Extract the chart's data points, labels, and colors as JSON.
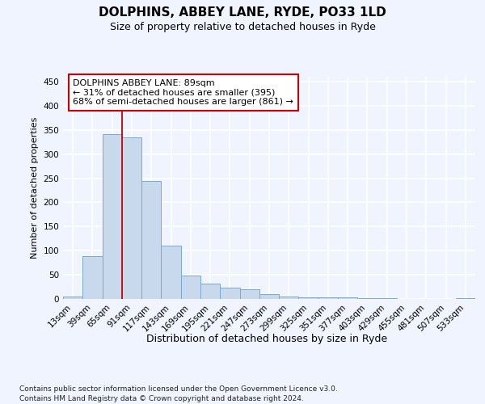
{
  "title": "DOLPHINS, ABBEY LANE, RYDE, PO33 1LD",
  "subtitle": "Size of property relative to detached houses in Ryde",
  "xlabel": "Distribution of detached houses by size in Ryde",
  "ylabel": "Number of detached properties",
  "bar_color": "#c9d9ed",
  "bar_edge_color": "#7aaacf",
  "background_color": "#f0f4ff",
  "grid_color": "#ffffff",
  "bins": [
    "13sqm",
    "39sqm",
    "65sqm",
    "91sqm",
    "117sqm",
    "143sqm",
    "169sqm",
    "195sqm",
    "221sqm",
    "247sqm",
    "273sqm",
    "299sqm",
    "325sqm",
    "351sqm",
    "377sqm",
    "403sqm",
    "429sqm",
    "455sqm",
    "481sqm",
    "507sqm",
    "533sqm"
  ],
  "values": [
    5,
    88,
    342,
    334,
    244,
    110,
    49,
    31,
    24,
    20,
    10,
    5,
    3,
    4,
    3,
    2,
    1,
    0,
    0,
    0,
    1
  ],
  "ylim": [
    0,
    460
  ],
  "yticks": [
    0,
    50,
    100,
    150,
    200,
    250,
    300,
    350,
    400,
    450
  ],
  "property_line_bin_idx": 3,
  "annotation_line1": "DOLPHINS ABBEY LANE: 89sqm",
  "annotation_line2": "← 31% of detached houses are smaller (395)",
  "annotation_line3": "68% of semi-detached houses are larger (861) →",
  "annotation_box_color": "#ffffff",
  "annotation_box_edge": "#cc0000",
  "footnote_line1": "Contains HM Land Registry data © Crown copyright and database right 2024.",
  "footnote_line2": "Contains public sector information licensed under the Open Government Licence v3.0."
}
